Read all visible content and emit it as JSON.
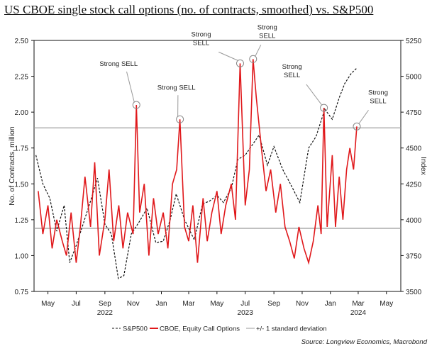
{
  "chart_data": {
    "type": "line",
    "title": "US CBOE single stock call options (no. of contracts, smoothed) vs. S&P500",
    "ylabel": "No. of Contracts, million",
    "y2label": "Index",
    "ylim": [
      0.75,
      2.5
    ],
    "y2lim": [
      3500,
      5250
    ],
    "yticks": [
      "0.75",
      "1.00",
      "1.25",
      "1.50",
      "1.75",
      "2.00",
      "2.25",
      "2.50"
    ],
    "y2ticks": [
      "3500",
      "3750",
      "4000",
      "4250",
      "4500",
      "4750",
      "5000",
      "5250"
    ],
    "xlim": [
      "2022-04-01",
      "2024-06-01"
    ],
    "xticks": [
      {
        "date": "2022-05-01",
        "label": "May"
      },
      {
        "date": "2022-07-01",
        "label": "Jul"
      },
      {
        "date": "2022-09-01",
        "label": "Sep",
        "year": "2022"
      },
      {
        "date": "2022-11-01",
        "label": "Nov"
      },
      {
        "date": "2023-01-01",
        "label": "Jan"
      },
      {
        "date": "2023-03-01",
        "label": "Mar"
      },
      {
        "date": "2023-05-01",
        "label": "May"
      },
      {
        "date": "2023-07-01",
        "label": "Jul",
        "year": "2023"
      },
      {
        "date": "2023-09-01",
        "label": "Sep"
      },
      {
        "date": "2023-11-01",
        "label": "Nov"
      },
      {
        "date": "2024-01-01",
        "label": "Jan"
      },
      {
        "date": "2024-03-01",
        "label": "Mar",
        "year": "2024"
      },
      {
        "date": "2024-05-01",
        "label": "May"
      }
    ],
    "std_dev_lines": [
      1.89,
      1.19
    ],
    "series": [
      {
        "name": "S&P500",
        "axis": "right",
        "style": "dashed",
        "color": "#111111",
        "x": [
          "2022-04-05",
          "2022-04-20",
          "2022-05-05",
          "2022-05-20",
          "2022-06-05",
          "2022-06-17",
          "2022-07-01",
          "2022-07-15",
          "2022-08-01",
          "2022-08-16",
          "2022-09-01",
          "2022-09-15",
          "2022-09-30",
          "2022-10-12",
          "2022-10-28",
          "2022-11-15",
          "2022-12-01",
          "2022-12-20",
          "2023-01-05",
          "2023-01-20",
          "2023-02-02",
          "2023-02-20",
          "2023-03-13",
          "2023-03-31",
          "2023-04-15",
          "2023-05-01",
          "2023-05-15",
          "2023-06-01",
          "2023-06-15",
          "2023-07-01",
          "2023-07-31",
          "2023-08-18",
          "2023-09-01",
          "2023-09-20",
          "2023-10-05",
          "2023-10-27",
          "2023-11-15",
          "2023-12-01",
          "2023-12-20",
          "2024-01-05",
          "2024-01-20",
          "2024-02-01",
          "2024-02-15",
          "2024-02-28"
        ],
        "values": [
          4450,
          4250,
          4150,
          3920,
          4100,
          3700,
          3820,
          3960,
          4130,
          4290,
          3970,
          3900,
          3590,
          3610,
          3900,
          3990,
          4080,
          3840,
          3850,
          4000,
          4180,
          4000,
          3860,
          4110,
          4130,
          4170,
          4120,
          4220,
          4420,
          4450,
          4590,
          4380,
          4510,
          4350,
          4260,
          4120,
          4500,
          4580,
          4770,
          4700,
          4850,
          4950,
          5020,
          5060
        ]
      },
      {
        "name": "CBOE, Equity Call Options",
        "axis": "left",
        "style": "solid",
        "color": "#e0181b",
        "x": [
          "2022-04-10",
          "2022-04-20",
          "2022-05-01",
          "2022-05-10",
          "2022-05-20",
          "2022-06-01",
          "2022-06-10",
          "2022-06-20",
          "2022-07-01",
          "2022-07-10",
          "2022-07-20",
          "2022-08-01",
          "2022-08-10",
          "2022-08-20",
          "2022-09-01",
          "2022-09-10",
          "2022-09-20",
          "2022-10-01",
          "2022-10-10",
          "2022-10-20",
          "2022-11-01",
          "2022-11-08",
          "2022-11-15",
          "2022-11-25",
          "2022-12-05",
          "2022-12-15",
          "2022-12-25",
          "2023-01-05",
          "2023-01-15",
          "2023-01-25",
          "2023-02-03",
          "2023-02-10",
          "2023-02-20",
          "2023-03-01",
          "2023-03-10",
          "2023-03-20",
          "2023-04-01",
          "2023-04-10",
          "2023-04-20",
          "2023-05-01",
          "2023-05-10",
          "2023-05-20",
          "2023-06-01",
          "2023-06-10",
          "2023-06-20",
          "2023-07-01",
          "2023-07-10",
          "2023-07-18",
          "2023-07-25",
          "2023-08-05",
          "2023-08-15",
          "2023-08-25",
          "2023-09-05",
          "2023-09-15",
          "2023-09-25",
          "2023-10-05",
          "2023-10-15",
          "2023-10-25",
          "2023-11-05",
          "2023-11-15",
          "2023-11-25",
          "2023-12-05",
          "2023-12-12",
          "2023-12-18",
          "2023-12-25",
          "2024-01-05",
          "2024-01-12",
          "2024-01-20",
          "2024-01-28",
          "2024-02-05",
          "2024-02-12",
          "2024-02-20",
          "2024-02-27"
        ],
        "values": [
          1.45,
          1.15,
          1.35,
          1.05,
          1.25,
          1.1,
          1.0,
          1.3,
          0.95,
          1.2,
          1.55,
          1.2,
          1.65,
          1.0,
          1.25,
          1.6,
          1.1,
          1.35,
          1.05,
          1.3,
          1.15,
          2.05,
          1.3,
          1.5,
          1.0,
          1.4,
          1.15,
          1.3,
          1.05,
          1.5,
          1.6,
          1.95,
          1.2,
          1.1,
          1.35,
          0.95,
          1.4,
          1.1,
          1.3,
          1.45,
          1.15,
          1.35,
          1.5,
          1.25,
          2.34,
          1.35,
          1.6,
          2.37,
          2.1,
          1.75,
          1.45,
          1.6,
          1.3,
          1.5,
          1.2,
          1.1,
          0.98,
          1.2,
          1.05,
          0.95,
          1.1,
          1.35,
          1.15,
          2.03,
          1.2,
          1.7,
          1.2,
          1.55,
          1.25,
          1.6,
          1.75,
          1.6,
          1.9
        ]
      },
      {
        "name": "+/- 1 standard deviation",
        "style": "solid",
        "color": "#9a9a9a"
      }
    ],
    "annotations": [
      {
        "text": [
          "Strong SELL"
        ],
        "date": "2022-11-08",
        "value": 2.05
      },
      {
        "text": [
          "Strong SELL"
        ],
        "date": "2023-02-10",
        "value": 1.95
      },
      {
        "text": [
          "Strong",
          "SELL"
        ],
        "date": "2023-06-20",
        "value": 2.34
      },
      {
        "text": [
          "Strong",
          "SELL"
        ],
        "date": "2023-07-18",
        "value": 2.37
      },
      {
        "text": [
          "Strong",
          "SELL"
        ],
        "date": "2023-12-18",
        "value": 2.03
      },
      {
        "text": [
          "Strong",
          "SELL"
        ],
        "date": "2024-02-27",
        "value": 1.9
      }
    ],
    "source": "Source: Longview Economics, Macrobond"
  }
}
